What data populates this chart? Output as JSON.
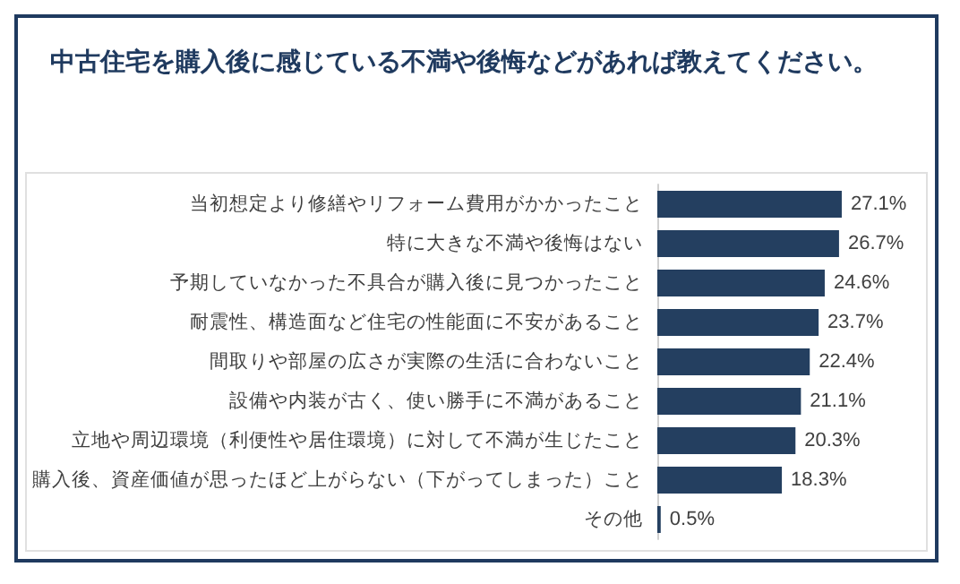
{
  "chart_data": {
    "type": "bar",
    "orientation": "horizontal",
    "title": "中古住宅を購入後に感じている不満や後悔などがあれば教えてください。",
    "categories": [
      "当初想定より修繕やリフォーム費用がかかったこと",
      "特に大きな不満や後悔はない",
      "予期していなかった不具合が購入後に見つかったこと",
      "耐震性、構造面など住宅の性能面に不安があること",
      "間取りや部屋の広さが実際の生活に合わないこと",
      "設備や内装が古く、使い勝手に不満があること",
      "立地や周辺環境（利便性や居住環境）に対して不満が生じたこと",
      "購入後、資産価値が思ったほど上がらない（下がってしまった）こと",
      "その他"
    ],
    "values": [
      27.1,
      26.7,
      24.6,
      23.7,
      22.4,
      21.1,
      20.3,
      18.3,
      0.5
    ],
    "value_labels": [
      "27.1%",
      "26.7%",
      "24.6%",
      "23.7%",
      "22.4%",
      "21.1%",
      "20.3%",
      "18.3%",
      "0.5%"
    ],
    "color": "#243f60",
    "tick_labels": "y"
  }
}
